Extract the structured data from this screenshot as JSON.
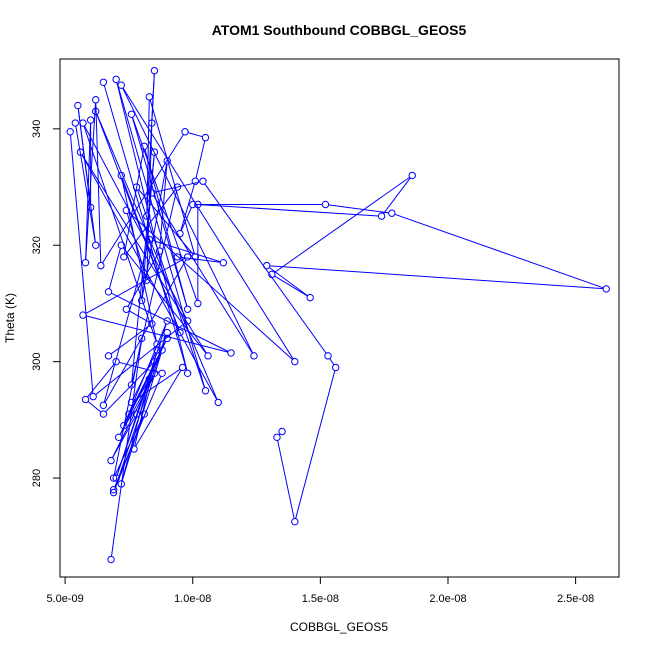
{
  "chart_data": {
    "type": "line",
    "title": "ATOM1 Southbound COBBGL_GEOS5",
    "xlabel": "COBBGL_GEOS5",
    "ylabel": "Theta (K)",
    "xlim": [
      4.8e-09,
      2.67e-08
    ],
    "ylim": [
      263,
      352
    ],
    "x_ticks": [
      5e-09,
      1e-08,
      1.5e-08,
      2e-08,
      2.5e-08
    ],
    "x_tick_labels": [
      "5.0e-09",
      "1.0e-08",
      "1.5e-08",
      "2.0e-08",
      "2.5e-08"
    ],
    "y_ticks": [
      280,
      300,
      320,
      340
    ],
    "y_tick_labels": [
      "280",
      "300",
      "320",
      "340"
    ],
    "grid": false,
    "color": "#0000ff",
    "series": [
      {
        "points": [
          [
            6.8e-09,
            266
          ],
          [
            8e-09,
            304
          ],
          [
            6.9e-09,
            280
          ],
          [
            8.1e-09,
            291
          ],
          [
            6.9e-09,
            277.5
          ],
          [
            9e-09,
            305
          ],
          [
            7.8e-09,
            291
          ],
          [
            6.8e-09,
            283
          ],
          [
            8.5e-09,
            298
          ],
          [
            7.1e-09,
            287
          ],
          [
            9e-09,
            304
          ],
          [
            7.5e-09,
            291
          ],
          [
            8.3e-09,
            297
          ],
          [
            7e-09,
            280
          ],
          [
            9e-09,
            307
          ],
          [
            7.3e-09,
            289
          ],
          [
            8.8e-09,
            302
          ],
          [
            7.2e-09,
            279
          ],
          [
            8.6e-09,
            302
          ],
          [
            7.6e-09,
            293
          ],
          [
            9.6e-09,
            299
          ],
          [
            7.7e-09,
            285
          ],
          [
            8.5e-09,
            300
          ],
          [
            6.5e-09,
            291
          ],
          [
            5.8e-09,
            293.5
          ],
          [
            7e-09,
            300
          ],
          [
            8.8e-09,
            298
          ],
          [
            6.9e-09,
            278
          ]
        ]
      },
      {
        "points": [
          [
            5.2e-09,
            339.5
          ],
          [
            6.1e-09,
            294
          ],
          [
            9.8e-09,
            307
          ],
          [
            5.7e-09,
            341
          ],
          [
            8.6e-09,
            303
          ],
          [
            7.2e-09,
            332
          ],
          [
            9.5e-09,
            305
          ],
          [
            6.2e-09,
            343
          ],
          [
            1.1e-08,
            293
          ],
          [
            5.6e-09,
            336
          ],
          [
            1.06e-08,
            301
          ],
          [
            7.2e-09,
            320
          ],
          [
            6.7e-09,
            312
          ],
          [
            1.15e-08,
            301.5
          ],
          [
            5.7e-09,
            308
          ],
          [
            9.8e-09,
            318
          ],
          [
            6.5e-09,
            292.5
          ],
          [
            8.3e-09,
            321
          ],
          [
            1.12e-08,
            317
          ],
          [
            9.4e-09,
            318
          ]
        ]
      },
      {
        "points": [
          [
            6.5e-09,
            348
          ],
          [
            9.8e-09,
            298
          ],
          [
            7e-09,
            348.5
          ],
          [
            1.05e-08,
            295
          ],
          [
            7.8e-09,
            330
          ],
          [
            1.01e-08,
            318
          ],
          [
            8.3e-09,
            345.5
          ],
          [
            8.2e-09,
            325
          ],
          [
            8.5e-09,
            350
          ],
          [
            8.4e-09,
            341
          ],
          [
            8.2e-09,
            314
          ],
          [
            7.4e-09,
            326
          ],
          [
            1.4e-08,
            300
          ],
          [
            7.2e-09,
            347.5
          ],
          [
            1.24e-08,
            301
          ],
          [
            8.4e-09,
            329
          ],
          [
            1.04e-08,
            331
          ],
          [
            1.53e-08,
            301
          ],
          [
            1.56e-08,
            299
          ],
          [
            1.4e-08,
            272.5
          ],
          [
            1.33e-08,
            287
          ],
          [
            1.35e-08,
            288
          ]
        ]
      },
      {
        "points": [
          [
            5.4e-09,
            341
          ],
          [
            6.2e-09,
            320
          ],
          [
            5.5e-09,
            344
          ],
          [
            6e-09,
            326.5
          ],
          [
            6e-09,
            341.5
          ],
          [
            5.8e-09,
            317
          ],
          [
            6.2e-09,
            345
          ],
          [
            6.4e-09,
            316.5
          ],
          [
            9.7e-09,
            339.5
          ],
          [
            1.05e-08,
            338.5
          ],
          [
            1.01e-08,
            331
          ],
          [
            9.5e-09,
            322
          ],
          [
            1e-08,
            327
          ],
          [
            1.52e-08,
            327
          ],
          [
            1.78e-08,
            325.5
          ],
          [
            2.62e-08,
            312.5
          ],
          [
            1.29e-08,
            316.5
          ],
          [
            1.46e-08,
            311
          ],
          [
            1.31e-08,
            315
          ],
          [
            1.86e-08,
            332
          ],
          [
            1.74e-08,
            325
          ],
          [
            1.02e-08,
            327
          ],
          [
            1.02e-08,
            310
          ],
          [
            7.6e-09,
            342.5
          ],
          [
            9.8e-09,
            309
          ],
          [
            8.1e-09,
            337
          ],
          [
            7.3e-09,
            318
          ],
          [
            9.4e-09,
            330
          ],
          [
            7.6e-09,
            296
          ],
          [
            8.5e-09,
            336
          ],
          [
            8e-09,
            310.5
          ],
          [
            9e-09,
            334.5
          ],
          [
            8.7e-09,
            319
          ],
          [
            7.4e-09,
            309
          ],
          [
            8.4e-09,
            306.5
          ],
          [
            6.7e-09,
            301
          ]
        ]
      }
    ]
  }
}
